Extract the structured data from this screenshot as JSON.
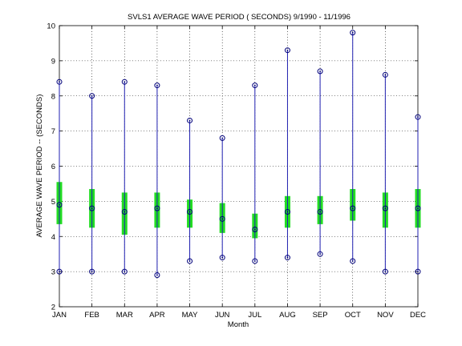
{
  "chart_data": {
    "type": "boxplot",
    "title": "SVLS1  AVERAGE WAVE PERIOD ( SECONDS) 9/1990 - 11/1996",
    "xlabel": "Month",
    "ylabel": "AVERAGE WAVE PERIOD -- (SECONDS)",
    "categories": [
      "JAN",
      "FEB",
      "MAR",
      "APR",
      "MAY",
      "JUN",
      "JUL",
      "AUG",
      "SEP",
      "OCT",
      "NOV",
      "DEC"
    ],
    "ylim": [
      2,
      10
    ],
    "yticks": [
      "2",
      "3",
      "4",
      "5",
      "6",
      "7",
      "8",
      "9",
      "10"
    ],
    "grid": true,
    "series": [
      {
        "name": "",
        "values": []
      }
    ],
    "stats": {
      "min": [
        3.0,
        3.0,
        3.0,
        2.9,
        3.3,
        3.4,
        3.3,
        3.4,
        3.5,
        3.3,
        3.0,
        3.0
      ],
      "max": [
        8.4,
        8.0,
        8.4,
        8.3,
        7.3,
        6.8,
        8.3,
        9.3,
        8.7,
        9.8,
        8.6,
        7.4
      ],
      "mean": [
        4.9,
        4.8,
        4.7,
        4.8,
        4.7,
        4.5,
        4.2,
        4.7,
        4.7,
        4.8,
        4.8,
        4.8
      ],
      "box_low": [
        4.35,
        4.25,
        4.05,
        4.25,
        4.25,
        4.1,
        3.95,
        4.25,
        4.35,
        4.45,
        4.25,
        4.25
      ],
      "box_high": [
        5.55,
        5.35,
        5.25,
        5.25,
        5.05,
        4.95,
        4.65,
        5.15,
        5.15,
        5.35,
        5.25,
        5.35
      ]
    },
    "colors": {
      "whisker": "#1f1fb0",
      "box": "#22dd22",
      "marker": "#00007a",
      "grid": "#000000"
    }
  }
}
